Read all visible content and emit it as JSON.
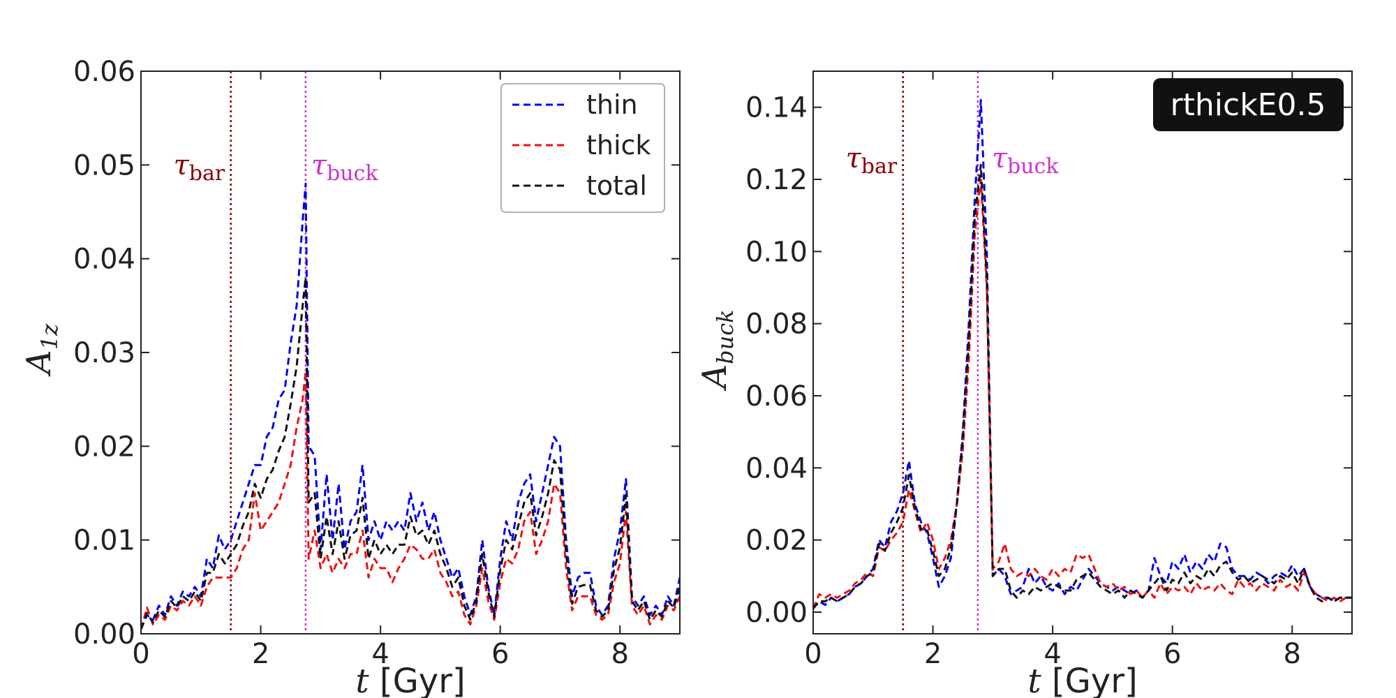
{
  "chart_data": [
    {
      "type": "line",
      "panel": "left",
      "title": "",
      "xlabel_var": "t",
      "xlabel_unit": "[Gyr]",
      "ylabel_base": "A",
      "ylabel_sub": "1z",
      "xlim": [
        0,
        9
      ],
      "ylim": [
        0,
        0.06
      ],
      "xticks": [
        0,
        2,
        4,
        6,
        8
      ],
      "xtick_labels": [
        "0",
        "2",
        "4",
        "6",
        "8"
      ],
      "yticks": [
        0.0,
        0.01,
        0.02,
        0.03,
        0.04,
        0.05,
        0.06
      ],
      "ytick_labels": [
        "0.00",
        "0.01",
        "0.02",
        "0.03",
        "0.04",
        "0.05",
        "0.06"
      ],
      "vlines": [
        {
          "name": "tau_bar",
          "x": 1.5,
          "color": "#8b0000",
          "label_base": "τ",
          "label_sub": "bar"
        },
        {
          "name": "tau_buck",
          "x": 2.75,
          "color": "#cc33cc",
          "label_base": "τ",
          "label_sub": "buck"
        }
      ],
      "legend": {
        "location": "top-right",
        "entries": [
          "thin",
          "thick",
          "total"
        ]
      },
      "x": [
        0,
        0.1,
        0.2,
        0.3,
        0.4,
        0.5,
        0.6,
        0.7,
        0.8,
        0.9,
        1.0,
        1.1,
        1.2,
        1.3,
        1.4,
        1.5,
        1.6,
        1.7,
        1.8,
        1.9,
        2.0,
        2.1,
        2.2,
        2.3,
        2.4,
        2.5,
        2.6,
        2.7,
        2.75,
        2.8,
        2.9,
        3.0,
        3.1,
        3.2,
        3.3,
        3.4,
        3.5,
        3.6,
        3.7,
        3.8,
        3.9,
        4.0,
        4.1,
        4.2,
        4.3,
        4.4,
        4.5,
        4.6,
        4.7,
        4.8,
        4.9,
        5.0,
        5.1,
        5.2,
        5.3,
        5.4,
        5.5,
        5.6,
        5.7,
        5.8,
        5.9,
        6.0,
        6.1,
        6.2,
        6.3,
        6.4,
        6.5,
        6.6,
        6.7,
        6.8,
        6.9,
        7.0,
        7.1,
        7.2,
        7.3,
        7.4,
        7.5,
        7.6,
        7.7,
        7.8,
        7.9,
        8.0,
        8.1,
        8.2,
        8.3,
        8.4,
        8.5,
        8.6,
        8.7,
        8.8,
        8.9,
        9.0
      ],
      "series": [
        {
          "name": "thin",
          "color": "#0000ee",
          "values": [
            0.0005,
            0.002,
            0.0015,
            0.003,
            0.002,
            0.004,
            0.003,
            0.0045,
            0.004,
            0.005,
            0.004,
            0.008,
            0.007,
            0.0105,
            0.009,
            0.01,
            0.012,
            0.014,
            0.016,
            0.018,
            0.018,
            0.021,
            0.022,
            0.025,
            0.026,
            0.031,
            0.035,
            0.044,
            0.048,
            0.02,
            0.019,
            0.009,
            0.017,
            0.01,
            0.016,
            0.009,
            0.012,
            0.013,
            0.018,
            0.01,
            0.012,
            0.01,
            0.012,
            0.011,
            0.012,
            0.011,
            0.015,
            0.012,
            0.014,
            0.011,
            0.013,
            0.01,
            0.008,
            0.006,
            0.007,
            0.004,
            0.002,
            0.004,
            0.01,
            0.005,
            0.002,
            0.008,
            0.012,
            0.01,
            0.014,
            0.016,
            0.017,
            0.012,
            0.015,
            0.018,
            0.021,
            0.02,
            0.01,
            0.004,
            0.006,
            0.0065,
            0.0065,
            0.003,
            0.002,
            0.003,
            0.008,
            0.011,
            0.0165,
            0.004,
            0.003,
            0.004,
            0.002,
            0.003,
            0.002,
            0.004,
            0.003,
            0.006
          ]
        },
        {
          "name": "thick",
          "color": "#ee1111",
          "values": [
            0.0005,
            0.0028,
            0.001,
            0.002,
            0.0015,
            0.003,
            0.0025,
            0.0035,
            0.003,
            0.004,
            0.003,
            0.005,
            0.006,
            0.006,
            0.006,
            0.006,
            0.007,
            0.009,
            0.01,
            0.015,
            0.011,
            0.012,
            0.013,
            0.014,
            0.016,
            0.018,
            0.022,
            0.025,
            0.028,
            0.008,
            0.011,
            0.007,
            0.0085,
            0.0065,
            0.008,
            0.007,
            0.0085,
            0.0085,
            0.011,
            0.006,
            0.008,
            0.007,
            0.007,
            0.0055,
            0.007,
            0.008,
            0.0095,
            0.009,
            0.008,
            0.008,
            0.009,
            0.0065,
            0.0055,
            0.004,
            0.0045,
            0.002,
            0.001,
            0.003,
            0.007,
            0.0035,
            0.0015,
            0.0055,
            0.008,
            0.0075,
            0.009,
            0.012,
            0.013,
            0.0085,
            0.01,
            0.012,
            0.016,
            0.015,
            0.007,
            0.0025,
            0.004,
            0.004,
            0.004,
            0.002,
            0.0015,
            0.002,
            0.0055,
            0.0075,
            0.013,
            0.003,
            0.002,
            0.003,
            0.001,
            0.002,
            0.0015,
            0.003,
            0.0025,
            0.004
          ]
        },
        {
          "name": "total",
          "color": "#111111",
          "values": [
            0.0005,
            0.0022,
            0.0012,
            0.0025,
            0.0018,
            0.0035,
            0.0028,
            0.004,
            0.0035,
            0.0045,
            0.0035,
            0.0065,
            0.0065,
            0.0085,
            0.0075,
            0.0085,
            0.0095,
            0.0115,
            0.013,
            0.016,
            0.0145,
            0.0165,
            0.0175,
            0.0195,
            0.021,
            0.0245,
            0.0285,
            0.035,
            0.038,
            0.014,
            0.015,
            0.008,
            0.0125,
            0.0085,
            0.012,
            0.008,
            0.0105,
            0.011,
            0.0145,
            0.008,
            0.01,
            0.0085,
            0.0095,
            0.0085,
            0.0095,
            0.0095,
            0.0125,
            0.0105,
            0.011,
            0.0095,
            0.011,
            0.0085,
            0.007,
            0.005,
            0.006,
            0.003,
            0.0015,
            0.0035,
            0.0085,
            0.0045,
            0.0018,
            0.0068,
            0.01,
            0.009,
            0.0115,
            0.014,
            0.015,
            0.0105,
            0.0125,
            0.015,
            0.0185,
            0.0175,
            0.0085,
            0.0032,
            0.005,
            0.0052,
            0.0052,
            0.0025,
            0.0018,
            0.0025,
            0.0068,
            0.0092,
            0.0148,
            0.0035,
            0.0025,
            0.0035,
            0.0015,
            0.0025,
            0.0018,
            0.0035,
            0.0028,
            0.005
          ]
        }
      ]
    },
    {
      "type": "line",
      "panel": "right",
      "title": "",
      "badge": "rthickE0.5",
      "xlabel_var": "t",
      "xlabel_unit": "[Gyr]",
      "ylabel_base": "A",
      "ylabel_sub": "buck",
      "xlim": [
        0,
        9
      ],
      "ylim": [
        -0.006,
        0.15
      ],
      "xticks": [
        0,
        2,
        4,
        6,
        8
      ],
      "xtick_labels": [
        "0",
        "2",
        "4",
        "6",
        "8"
      ],
      "yticks": [
        0.0,
        0.02,
        0.04,
        0.06,
        0.08,
        0.1,
        0.12,
        0.14
      ],
      "ytick_labels": [
        "0.00",
        "0.02",
        "0.04",
        "0.06",
        "0.08",
        "0.10",
        "0.12",
        "0.14"
      ],
      "vlines": [
        {
          "name": "tau_bar",
          "x": 1.5,
          "color": "#8b0000",
          "label_base": "τ",
          "label_sub": "bar"
        },
        {
          "name": "tau_buck",
          "x": 2.75,
          "color": "#cc33cc",
          "label_base": "τ",
          "label_sub": "buck"
        }
      ],
      "x": [
        0,
        0.1,
        0.2,
        0.3,
        0.4,
        0.5,
        0.6,
        0.7,
        0.8,
        0.9,
        1.0,
        1.1,
        1.2,
        1.3,
        1.4,
        1.5,
        1.6,
        1.7,
        1.8,
        1.9,
        2.0,
        2.1,
        2.2,
        2.3,
        2.4,
        2.5,
        2.6,
        2.7,
        2.8,
        2.9,
        3.0,
        3.1,
        3.2,
        3.3,
        3.4,
        3.5,
        3.6,
        3.7,
        3.8,
        3.9,
        4.0,
        4.1,
        4.2,
        4.3,
        4.4,
        4.5,
        4.6,
        4.7,
        4.8,
        4.9,
        5.0,
        5.1,
        5.2,
        5.3,
        5.4,
        5.5,
        5.6,
        5.7,
        5.8,
        5.9,
        6.0,
        6.1,
        6.2,
        6.3,
        6.4,
        6.5,
        6.6,
        6.7,
        6.8,
        6.9,
        7.0,
        7.1,
        7.2,
        7.3,
        7.4,
        7.5,
        7.6,
        7.7,
        7.8,
        7.9,
        8.0,
        8.1,
        8.2,
        8.3,
        8.4,
        8.5,
        8.6,
        8.7,
        8.8,
        8.9,
        9.0
      ],
      "series": [
        {
          "name": "thin",
          "color": "#0000ee",
          "values": [
            0.001,
            0.003,
            0.002,
            0.004,
            0.003,
            0.004,
            0.005,
            0.007,
            0.008,
            0.01,
            0.012,
            0.02,
            0.018,
            0.025,
            0.028,
            0.033,
            0.042,
            0.03,
            0.025,
            0.022,
            0.015,
            0.007,
            0.01,
            0.015,
            0.03,
            0.05,
            0.08,
            0.115,
            0.142,
            0.1,
            0.01,
            0.012,
            0.01,
            0.005,
            0.006,
            0.007,
            0.012,
            0.008,
            0.01,
            0.007,
            0.006,
            0.008,
            0.005,
            0.007,
            0.006,
            0.009,
            0.012,
            0.01,
            0.008,
            0.007,
            0.006,
            0.007,
            0.006,
            0.005,
            0.006,
            0.004,
            0.006,
            0.015,
            0.01,
            0.008,
            0.014,
            0.012,
            0.016,
            0.011,
            0.014,
            0.012,
            0.016,
            0.014,
            0.019,
            0.018,
            0.012,
            0.01,
            0.01,
            0.009,
            0.011,
            0.01,
            0.008,
            0.01,
            0.011,
            0.01,
            0.013,
            0.01,
            0.012,
            0.007,
            0.005,
            0.004,
            0.004,
            0.003,
            0.004,
            0.004,
            0.004
          ]
        },
        {
          "name": "thick",
          "color": "#ee1111",
          "values": [
            0.001,
            0.005,
            0.004,
            0.005,
            0.004,
            0.005,
            0.006,
            0.008,
            0.009,
            0.011,
            0.01,
            0.018,
            0.017,
            0.02,
            0.022,
            0.025,
            0.034,
            0.028,
            0.022,
            0.025,
            0.02,
            0.012,
            0.015,
            0.02,
            0.03,
            0.045,
            0.07,
            0.105,
            0.12,
            0.09,
            0.012,
            0.014,
            0.019,
            0.012,
            0.01,
            0.011,
            0.01,
            0.012,
            0.01,
            0.009,
            0.012,
            0.01,
            0.012,
            0.011,
            0.016,
            0.015,
            0.016,
            0.012,
            0.008,
            0.007,
            0.008,
            0.006,
            0.007,
            0.005,
            0.006,
            0.004,
            0.006,
            0.004,
            0.008,
            0.005,
            0.007,
            0.006,
            0.007,
            0.005,
            0.008,
            0.006,
            0.007,
            0.006,
            0.008,
            0.006,
            0.005,
            0.009,
            0.007,
            0.008,
            0.006,
            0.008,
            0.007,
            0.006,
            0.009,
            0.007,
            0.008,
            0.006,
            0.011,
            0.007,
            0.005,
            0.004,
            0.003,
            0.004,
            0.003,
            0.004,
            0.004
          ]
        },
        {
          "name": "total",
          "color": "#111111",
          "values": [
            0.001,
            0.003,
            0.003,
            0.004,
            0.003,
            0.004,
            0.005,
            0.007,
            0.008,
            0.01,
            0.011,
            0.019,
            0.017,
            0.022,
            0.025,
            0.029,
            0.038,
            0.029,
            0.023,
            0.023,
            0.017,
            0.01,
            0.012,
            0.018,
            0.03,
            0.048,
            0.075,
            0.11,
            0.124,
            0.092,
            0.01,
            0.012,
            0.012,
            0.006,
            0.004,
            0.006,
            0.005,
            0.007,
            0.006,
            0.007,
            0.008,
            0.007,
            0.006,
            0.006,
            0.009,
            0.01,
            0.011,
            0.009,
            0.007,
            0.006,
            0.005,
            0.006,
            0.004,
            0.006,
            0.005,
            0.004,
            0.006,
            0.008,
            0.01,
            0.006,
            0.009,
            0.008,
            0.011,
            0.008,
            0.01,
            0.009,
            0.012,
            0.01,
            0.013,
            0.014,
            0.011,
            0.009,
            0.01,
            0.008,
            0.009,
            0.01,
            0.009,
            0.008,
            0.01,
            0.009,
            0.011,
            0.008,
            0.012,
            0.007,
            0.004,
            0.003,
            0.004,
            0.003,
            0.004,
            0.004,
            0.004
          ]
        }
      ]
    }
  ]
}
